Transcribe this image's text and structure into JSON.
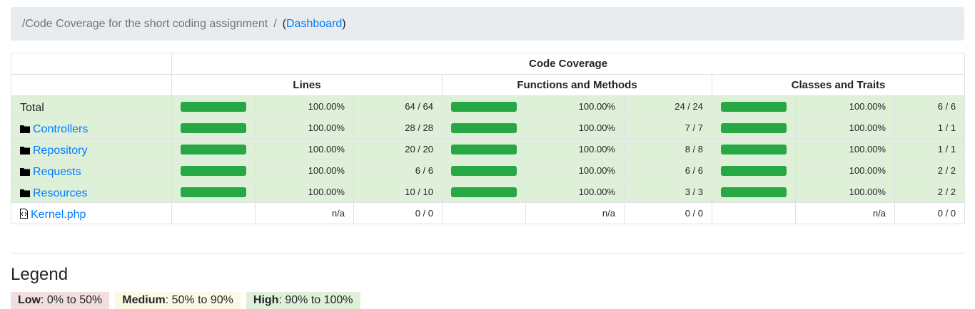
{
  "breadcrumb": {
    "path": "/Code Coverage for the short coding assignment",
    "separator": "/",
    "open": "(",
    "link": "Dashboard",
    "close": ")"
  },
  "table": {
    "title": "Code Coverage",
    "columns": [
      "Lines",
      "Functions and Methods",
      "Classes and Traits"
    ],
    "rows": [
      {
        "name": "Total",
        "kind": "total",
        "cells": [
          {
            "bar": 100,
            "percent": "100.00%",
            "ratio": "64 / 64"
          },
          {
            "bar": 100,
            "percent": "100.00%",
            "ratio": "24 / 24"
          },
          {
            "bar": 100,
            "percent": "100.00%",
            "ratio": "6 / 6"
          }
        ]
      },
      {
        "name": "Controllers",
        "kind": "dir",
        "cells": [
          {
            "bar": 100,
            "percent": "100.00%",
            "ratio": "28 / 28"
          },
          {
            "bar": 100,
            "percent": "100.00%",
            "ratio": "7 / 7"
          },
          {
            "bar": 100,
            "percent": "100.00%",
            "ratio": "1 / 1"
          }
        ]
      },
      {
        "name": "Repository",
        "kind": "dir",
        "cells": [
          {
            "bar": 100,
            "percent": "100.00%",
            "ratio": "20 / 20"
          },
          {
            "bar": 100,
            "percent": "100.00%",
            "ratio": "8 / 8"
          },
          {
            "bar": 100,
            "percent": "100.00%",
            "ratio": "1 / 1"
          }
        ]
      },
      {
        "name": "Requests",
        "kind": "dir",
        "cells": [
          {
            "bar": 100,
            "percent": "100.00%",
            "ratio": "6 / 6"
          },
          {
            "bar": 100,
            "percent": "100.00%",
            "ratio": "6 / 6"
          },
          {
            "bar": 100,
            "percent": "100.00%",
            "ratio": "2 / 2"
          }
        ]
      },
      {
        "name": "Resources",
        "kind": "dir",
        "cells": [
          {
            "bar": 100,
            "percent": "100.00%",
            "ratio": "10 / 10"
          },
          {
            "bar": 100,
            "percent": "100.00%",
            "ratio": "3 / 3"
          },
          {
            "bar": 100,
            "percent": "100.00%",
            "ratio": "2 / 2"
          }
        ]
      },
      {
        "name": "Kernel.php",
        "kind": "file",
        "cells": [
          {
            "bar": null,
            "percent": "n/a",
            "ratio": "0 / 0"
          },
          {
            "bar": null,
            "percent": "n/a",
            "ratio": "0 / 0"
          },
          {
            "bar": null,
            "percent": "n/a",
            "ratio": "0 / 0"
          }
        ]
      }
    ]
  },
  "legend": {
    "title": "Legend",
    "items": [
      {
        "label": "Low",
        "text": ": 0% to 50%",
        "color": "#f2dede"
      },
      {
        "label": "Medium",
        "text": ": 50% to 90%",
        "color": "#fcf8e3"
      },
      {
        "label": "High",
        "text": ": 90% to 100%",
        "color": "#dff0d8"
      }
    ]
  }
}
